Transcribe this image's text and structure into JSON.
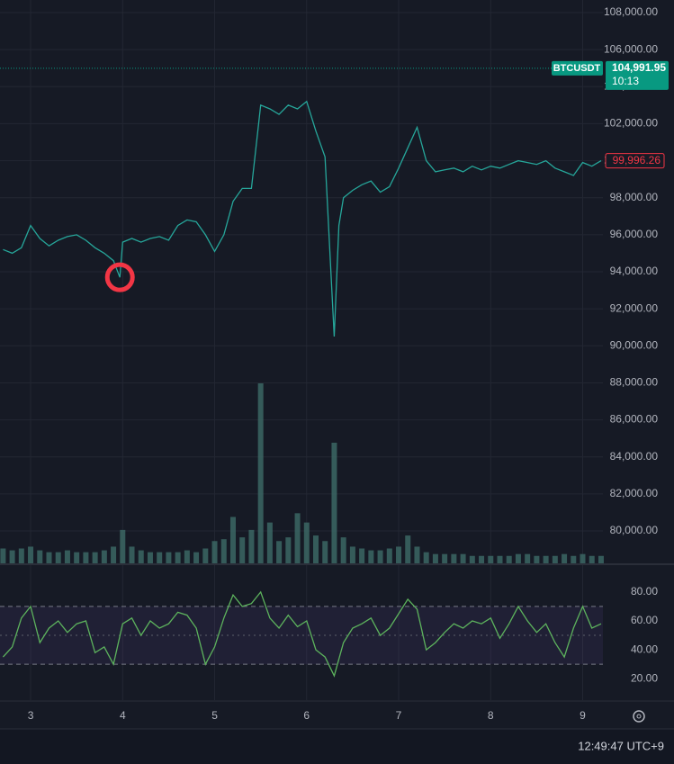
{
  "chart_data": [
    {
      "type": "line",
      "color": "#26a69a",
      "grid": true,
      "xlim": [
        2.667,
        9.22
      ],
      "ylim": [
        78250,
        108680
      ],
      "xticks": [
        3,
        4,
        5,
        6,
        7,
        8,
        9
      ],
      "yticks": [
        {
          "value": 80000,
          "label": "80,000.00"
        },
        {
          "value": 82000,
          "label": "82,000.00"
        },
        {
          "value": 84000,
          "label": "84,000.00"
        },
        {
          "value": 86000,
          "label": "86,000.00"
        },
        {
          "value": 88000,
          "label": "88,000.00"
        },
        {
          "value": 90000,
          "label": "90,000.00"
        },
        {
          "value": 92000,
          "label": "92,000.00"
        },
        {
          "value": 94000,
          "label": "94,000.00"
        },
        {
          "value": 96000,
          "label": "96,000.00"
        },
        {
          "value": 98000,
          "label": "98,000.00"
        },
        {
          "value": 100000,
          "label": "100,000.00"
        },
        {
          "value": 102000,
          "label": "102,000.00"
        },
        {
          "value": 104000,
          "label": "104,000.00"
        },
        {
          "value": 106000,
          "label": "106,000.00"
        },
        {
          "value": 108000,
          "label": "108,000.00"
        }
      ],
      "x": [
        2.7,
        2.8,
        2.9,
        3.0,
        3.1,
        3.2,
        3.3,
        3.4,
        3.5,
        3.6,
        3.7,
        3.8,
        3.9,
        3.97,
        4.0,
        4.1,
        4.2,
        4.3,
        4.4,
        4.5,
        4.6,
        4.7,
        4.8,
        4.9,
        5.0,
        5.1,
        5.2,
        5.3,
        5.4,
        5.5,
        5.6,
        5.7,
        5.8,
        5.9,
        6.0,
        6.1,
        6.2,
        6.3,
        6.35,
        6.4,
        6.5,
        6.6,
        6.7,
        6.8,
        6.9,
        7.0,
        7.1,
        7.2,
        7.3,
        7.4,
        7.5,
        7.6,
        7.7,
        7.8,
        7.9,
        8.0,
        8.1,
        8.2,
        8.3,
        8.4,
        8.5,
        8.6,
        8.7,
        8.8,
        8.9,
        9.0,
        9.1,
        9.2
      ],
      "values": [
        95200,
        95000,
        95300,
        96500,
        95800,
        95400,
        95700,
        95900,
        96000,
        95700,
        95300,
        95000,
        94600,
        93700,
        95600,
        95800,
        95600,
        95800,
        95900,
        95700,
        96500,
        96800,
        96700,
        96000,
        95100,
        96000,
        97800,
        98500,
        98500,
        103000,
        102800,
        102500,
        103000,
        102800,
        103200,
        101600,
        100200,
        90500,
        96500,
        98000,
        98400,
        98700,
        98900,
        98300,
        98600,
        99600,
        100700,
        101800,
        100000,
        99400,
        99500,
        99600,
        99400,
        99700,
        99500,
        99700,
        99600,
        99800,
        100000,
        99900,
        99800,
        100000,
        99600,
        99400,
        99200,
        99900,
        99700,
        99996.26
      ],
      "price_lines": [
        {
          "value": 104991.95,
          "label": "104,991.95",
          "name": "BTCUSDT",
          "time": "10:13",
          "color": "#089981"
        },
        {
          "value": 99996.26,
          "label": "99,996.26",
          "color": "#f23645"
        }
      ],
      "marker": {
        "x": 3.97,
        "y": 93700,
        "color": "#f23645"
      }
    },
    {
      "type": "bar",
      "color": "#3d6b68",
      "xlim": [
        2.667,
        9.22
      ],
      "x": [
        2.7,
        2.8,
        2.9,
        3.0,
        3.1,
        3.2,
        3.3,
        3.4,
        3.5,
        3.6,
        3.7,
        3.8,
        3.9,
        4.0,
        4.1,
        4.2,
        4.3,
        4.4,
        4.5,
        4.6,
        4.7,
        4.8,
        4.9,
        5.0,
        5.1,
        5.2,
        5.3,
        5.4,
        5.5,
        5.6,
        5.7,
        5.8,
        5.9,
        6.0,
        6.1,
        6.2,
        6.3,
        6.4,
        6.5,
        6.6,
        6.7,
        6.8,
        6.9,
        7.0,
        7.1,
        7.2,
        7.3,
        7.4,
        7.5,
        7.6,
        7.7,
        7.8,
        7.9,
        8.0,
        8.1,
        8.2,
        8.3,
        8.4,
        8.5,
        8.6,
        8.7,
        8.8,
        8.9,
        9.0,
        9.1,
        9.2
      ],
      "values": [
        8,
        7,
        8,
        9,
        7,
        6,
        6,
        7,
        6,
        6,
        6,
        7,
        9,
        18,
        9,
        7,
        6,
        6,
        6,
        6,
        7,
        6,
        8,
        12,
        13,
        25,
        14,
        18,
        97,
        22,
        12,
        14,
        27,
        22,
        15,
        12,
        65,
        14,
        9,
        8,
        7,
        7,
        8,
        9,
        15,
        9,
        6,
        5,
        5,
        5,
        5,
        4,
        4,
        4,
        4,
        4,
        5,
        5,
        4,
        4,
        4,
        5,
        4,
        5,
        4,
        4
      ]
    },
    {
      "type": "line",
      "color": "#5db35d",
      "xlim": [
        2.667,
        9.22
      ],
      "ylim": [
        5.2,
        98.6
      ],
      "yticks": [
        {
          "value": 20,
          "label": "20.00"
        },
        {
          "value": 40,
          "label": "40.00"
        },
        {
          "value": 60,
          "label": "60.00"
        },
        {
          "value": 80,
          "label": "80.00"
        }
      ],
      "band": [
        30,
        70
      ],
      "midline": 50,
      "x": [
        2.7,
        2.8,
        2.9,
        3.0,
        3.1,
        3.2,
        3.3,
        3.4,
        3.5,
        3.6,
        3.7,
        3.8,
        3.9,
        4.0,
        4.1,
        4.2,
        4.3,
        4.4,
        4.5,
        4.6,
        4.7,
        4.8,
        4.9,
        5.0,
        5.1,
        5.2,
        5.3,
        5.4,
        5.5,
        5.6,
        5.7,
        5.8,
        5.9,
        6.0,
        6.1,
        6.2,
        6.3,
        6.4,
        6.5,
        6.6,
        6.7,
        6.8,
        6.9,
        7.0,
        7.1,
        7.2,
        7.3,
        7.4,
        7.5,
        7.6,
        7.7,
        7.8,
        7.9,
        8.0,
        8.1,
        8.2,
        8.3,
        8.4,
        8.5,
        8.6,
        8.7,
        8.8,
        8.9,
        9.0,
        9.1,
        9.2
      ],
      "values": [
        35,
        42,
        62,
        70,
        45,
        55,
        60,
        52,
        58,
        60,
        38,
        42,
        30,
        58,
        62,
        50,
        60,
        55,
        58,
        66,
        64,
        55,
        30,
        42,
        62,
        78,
        70,
        72,
        80,
        62,
        55,
        64,
        56,
        60,
        40,
        35,
        22,
        45,
        55,
        58,
        62,
        50,
        55,
        65,
        75,
        68,
        40,
        45,
        52,
        58,
        55,
        60,
        58,
        62,
        48,
        58,
        70,
        60,
        52,
        58,
        45,
        35,
        55,
        70,
        55,
        58
      ]
    }
  ],
  "clock": "12:49:47 UTC+9"
}
